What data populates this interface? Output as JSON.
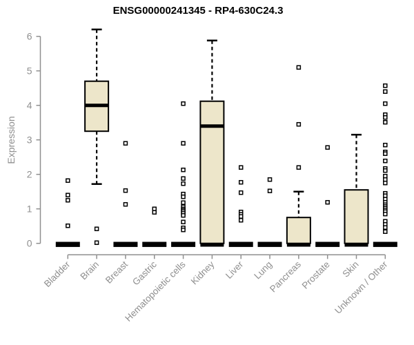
{
  "chart_data": {
    "type": "boxplot",
    "title": "ENSG00000241345 - RP4-630C24.3",
    "ylabel": "Expression",
    "xlabel": "",
    "ylim": [
      0,
      6
    ],
    "yticks": [
      0,
      1,
      2,
      3,
      4,
      5,
      6
    ],
    "grid": false,
    "legend": null,
    "categories": [
      "Bladder",
      "Brain",
      "Breast",
      "Gastric",
      "Hematopoietic cells",
      "Kidney",
      "Liver",
      "Lung",
      "Pancreas",
      "Prostate",
      "Skin",
      "Unknown / Other"
    ],
    "series": [
      {
        "category": "Bladder",
        "q1": 0,
        "median": 0,
        "q3": 0,
        "whisker_low": 0,
        "whisker_high": 0,
        "outliers": [
          1.82,
          1.4,
          1.25,
          0.51
        ]
      },
      {
        "category": "Brain",
        "q1": 3.25,
        "median": 4.0,
        "q3": 4.7,
        "whisker_low": 1.72,
        "whisker_high": 6.2,
        "outliers": [
          0.42,
          0.02
        ]
      },
      {
        "category": "Breast",
        "q1": 0,
        "median": 0,
        "q3": 0,
        "whisker_low": 0,
        "whisker_high": 0,
        "outliers": [
          2.9,
          1.53,
          1.13
        ]
      },
      {
        "category": "Gastric",
        "q1": 0,
        "median": 0,
        "q3": 0,
        "whisker_low": 0,
        "whisker_high": 0,
        "outliers": [
          1.0,
          0.9
        ]
      },
      {
        "category": "Hematopoietic cells",
        "q1": 0,
        "median": 0,
        "q3": 0,
        "whisker_low": 0,
        "whisker_high": 0,
        "outliers": [
          4.05,
          2.9,
          2.13,
          1.88,
          1.73,
          1.43,
          1.35,
          1.18,
          1.06,
          1.0,
          0.96,
          0.92,
          0.87,
          0.81,
          0.62,
          0.45,
          0.39
        ]
      },
      {
        "category": "Kidney",
        "q1": 0,
        "median": 3.4,
        "q3": 4.12,
        "whisker_low": 0,
        "whisker_high": 5.88,
        "outliers": []
      },
      {
        "category": "Liver",
        "q1": 0,
        "median": 0,
        "q3": 0,
        "whisker_low": 0,
        "whisker_high": 0,
        "outliers": [
          2.2,
          1.77,
          1.47,
          0.91,
          0.84,
          0.78,
          0.67
        ]
      },
      {
        "category": "Lung",
        "q1": 0,
        "median": 0,
        "q3": 0,
        "whisker_low": 0,
        "whisker_high": 0,
        "outliers": [
          1.85,
          1.52
        ]
      },
      {
        "category": "Pancreas",
        "q1": 0,
        "median": 0,
        "q3": 0.75,
        "whisker_low": 0,
        "whisker_high": 1.5,
        "outliers": [
          5.1,
          3.45,
          2.2
        ]
      },
      {
        "category": "Prostate",
        "q1": 0,
        "median": 0,
        "q3": 0,
        "whisker_low": 0,
        "whisker_high": 0,
        "outliers": [
          2.78,
          1.19
        ]
      },
      {
        "category": "Skin",
        "q1": 0,
        "median": 0,
        "q3": 1.55,
        "whisker_low": 0,
        "whisker_high": 3.15,
        "outliers": []
      },
      {
        "category": "Unknown / Other",
        "q1": 0,
        "median": 0,
        "q3": 0,
        "whisker_low": 0,
        "whisker_high": 0,
        "outliers": [
          4.57,
          4.4,
          4.05,
          3.73,
          3.65,
          3.51,
          2.85,
          2.65,
          2.6,
          2.39,
          2.17,
          2.11,
          1.95,
          1.85,
          1.75,
          1.45,
          1.38,
          1.28,
          1.19,
          1.12,
          1.07,
          1.02,
          0.97,
          0.92,
          0.85,
          0.64,
          0.55,
          0.46,
          0.34
        ]
      }
    ],
    "colors": {
      "box_fill": "#EDE6CA",
      "box_stroke": "#000000",
      "median": "#000000",
      "whisker": "#000000",
      "outlier_fill": "#FFFFFF",
      "outlier_stroke": "#000000",
      "axis": "#8F8F8F",
      "tick_label": "#8F8F8F",
      "title": "#000000"
    }
  }
}
